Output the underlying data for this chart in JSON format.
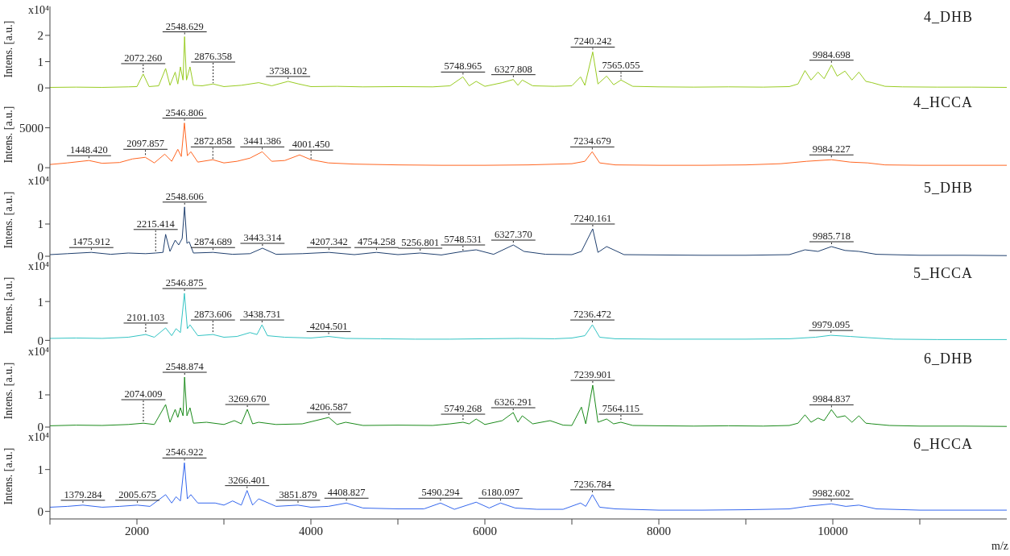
{
  "chart_data": [
    {
      "type": "line",
      "title": "4_DHB",
      "ylabel": "Intens. [a.u.]",
      "xlim": [
        1000,
        12000
      ],
      "ylim": [
        -0.15,
        3.1
      ],
      "yticks": [
        0,
        1,
        2
      ],
      "tick_labels": "y",
      "series": [
        {
          "color": "#99cc22",
          "x": [
            1000,
            1300,
            1600,
            1900,
            2000,
            2072,
            2140,
            2250,
            2330,
            2380,
            2440,
            2470,
            2500,
            2530,
            2548,
            2570,
            2610,
            2650,
            2750,
            2876,
            3000,
            3200,
            3400,
            3550,
            3738,
            3860,
            4000,
            4300,
            4600,
            5000,
            5400,
            5600,
            5748,
            5820,
            5900,
            6000,
            6200,
            6327,
            6380,
            6430,
            6550,
            6800,
            7000,
            7100,
            7150,
            7240,
            7300,
            7400,
            7480,
            7565,
            7700,
            8000,
            8400,
            8800,
            9200,
            9500,
            9600,
            9680,
            9750,
            9830,
            9900,
            9984,
            10050,
            10140,
            10220,
            10300,
            10380,
            10450,
            10600,
            10800,
            11200,
            11600,
            12000
          ],
          "values": [
            0.02,
            0.03,
            0.02,
            0.04,
            0.05,
            0.53,
            0.05,
            0.08,
            0.74,
            0.1,
            0.6,
            0.15,
            0.8,
            0.3,
            1.95,
            0.3,
            0.8,
            0.1,
            0.08,
            0.15,
            0.05,
            0.1,
            0.2,
            0.08,
            0.25,
            0.15,
            0.05,
            0.06,
            0.04,
            0.05,
            0.04,
            0.08,
            0.42,
            0.08,
            0.25,
            0.06,
            0.2,
            0.32,
            0.1,
            0.3,
            0.08,
            0.06,
            0.08,
            0.42,
            0.1,
            1.37,
            0.15,
            0.45,
            0.12,
            0.3,
            0.06,
            0.04,
            0.03,
            0.04,
            0.03,
            0.05,
            0.15,
            0.66,
            0.3,
            0.6,
            0.35,
            0.87,
            0.45,
            0.64,
            0.3,
            0.6,
            0.25,
            0.2,
            0.06,
            0.04,
            0.03,
            0.03,
            0.02
          ]
        }
      ],
      "annotations": [
        "x10⁴",
        {
          "text": "2072.260",
          "x": 2072.26,
          "y": 0.53
        },
        {
          "text": "2548.629",
          "x": 2548.629,
          "y": 1.95
        },
        {
          "text": "2876.358",
          "x": 2876.358,
          "y": 0.15
        },
        {
          "text": "3738.102",
          "x": 3738.102,
          "y": 0.25
        },
        {
          "text": "5748.965",
          "x": 5748.965,
          "y": 0.42
        },
        {
          "text": "6327.808",
          "x": 6327.808,
          "y": 0.32
        },
        {
          "text": "7240.242",
          "x": 7240.242,
          "y": 1.37
        },
        {
          "text": "7565.055",
          "x": 7565.055,
          "y": 0.3
        },
        {
          "text": "9984.698",
          "x": 9984.698,
          "y": 0.87
        }
      ]
    },
    {
      "type": "line",
      "title": "4_HCCA",
      "ylabel": "Intens. [a.u.]",
      "xlim": [
        1000,
        12000
      ],
      "ylim": [
        -1200,
        9500
      ],
      "yticks": [
        0,
        5000
      ],
      "tick_labels": "y",
      "series": [
        {
          "color": "#ff6622",
          "x": [
            1000,
            1200,
            1448,
            1600,
            1800,
            1950,
            2097,
            2200,
            2320,
            2400,
            2470,
            2510,
            2546,
            2580,
            2620,
            2700,
            2872,
            3000,
            3150,
            3300,
            3441,
            3550,
            3700,
            3870,
            4001,
            4200,
            4500,
            5000,
            5500,
            6000,
            6500,
            7000,
            7150,
            7234,
            7320,
            7500,
            8000,
            8500,
            9000,
            9400,
            9700,
            9984,
            10200,
            10400,
            10600,
            11000,
            11500,
            12000
          ],
          "values": [
            400,
            600,
            900,
            550,
            650,
            1100,
            1300,
            600,
            1700,
            800,
            2300,
            1400,
            5600,
            1500,
            2000,
            700,
            1000,
            600,
            800,
            1200,
            2000,
            800,
            900,
            1600,
            1000,
            600,
            450,
            350,
            300,
            300,
            350,
            500,
            800,
            2000,
            600,
            350,
            300,
            300,
            350,
            500,
            800,
            1000,
            700,
            600,
            350,
            300,
            300,
            300
          ]
        }
      ],
      "annotations": [
        {
          "text": "1448.420",
          "x": 1448.42,
          "y": 900
        },
        {
          "text": "2097.857",
          "x": 2097.857,
          "y": 1300
        },
        {
          "text": "2546.806",
          "x": 2546.806,
          "y": 5600
        },
        {
          "text": "2872.858",
          "x": 2872.858,
          "y": 1000
        },
        {
          "text": "3441.386",
          "x": 3441.386,
          "y": 2000
        },
        {
          "text": "4001.450",
          "x": 4001.45,
          "y": 1000
        },
        {
          "text": "7234.679",
          "x": 7234.679,
          "y": 2000
        },
        {
          "text": "9984.227",
          "x": 9984.227,
          "y": 1000
        }
      ]
    },
    {
      "type": "line",
      "title": "5_DHB",
      "ylabel": "Intens. [a.u.]",
      "xlim": [
        1000,
        12000
      ],
      "ylim": [
        -0.2,
        2.45
      ],
      "yticks": [
        0,
        1
      ],
      "tick_labels": "y",
      "series": [
        {
          "color": "#1f3f6e",
          "x": [
            1000,
            1200,
            1475,
            1700,
            1900,
            2100,
            2215,
            2300,
            2330,
            2380,
            2440,
            2480,
            2520,
            2548,
            2575,
            2600,
            2650,
            2874,
            3100,
            3300,
            3443,
            3600,
            3900,
            4207,
            4500,
            4754,
            5000,
            5256,
            5500,
            5748,
            5900,
            6100,
            6327,
            6450,
            6700,
            7000,
            7110,
            7240,
            7300,
            7400,
            7600,
            8000,
            8500,
            9000,
            9500,
            9680,
            9830,
            9984,
            10140,
            10300,
            10500,
            11000,
            11500,
            12000
          ],
          "values": [
            0.05,
            0.08,
            0.12,
            0.06,
            0.1,
            0.08,
            0.1,
            0.12,
            0.68,
            0.15,
            0.5,
            0.35,
            0.55,
            1.53,
            0.4,
            0.45,
            0.1,
            0.12,
            0.06,
            0.08,
            0.25,
            0.06,
            0.08,
            0.12,
            0.05,
            0.12,
            0.05,
            0.1,
            0.04,
            0.15,
            0.2,
            0.06,
            0.35,
            0.15,
            0.06,
            0.05,
            0.15,
            0.85,
            0.12,
            0.3,
            0.05,
            0.04,
            0.03,
            0.03,
            0.05,
            0.2,
            0.15,
            0.3,
            0.18,
            0.15,
            0.06,
            0.03,
            0.03,
            0.02
          ]
        }
      ],
      "annotations": [
        "x10⁴",
        {
          "text": "1475.912",
          "x": 1475.912,
          "y": 0.12
        },
        {
          "text": "2215.414",
          "x": 2215.414,
          "y": 0.1
        },
        {
          "text": "2548.606",
          "x": 2548.606,
          "y": 1.53
        },
        {
          "text": "2874.689",
          "x": 2874.689,
          "y": 0.12
        },
        {
          "text": "3443.314",
          "x": 3443.314,
          "y": 0.25
        },
        {
          "text": "4207.342",
          "x": 4207.342,
          "y": 0.12
        },
        {
          "text": "4754.258",
          "x": 4754.258,
          "y": 0.12
        },
        {
          "text": "5256.801",
          "x": 5256.801,
          "y": 0.1
        },
        {
          "text": "5748.531",
          "x": 5748.531,
          "y": 0.15
        },
        {
          "text": "6327.370",
          "x": 6327.37,
          "y": 0.35
        },
        {
          "text": "7240.161",
          "x": 7240.161,
          "y": 0.85
        },
        {
          "text": "9985.718",
          "x": 9985.718,
          "y": 0.3
        }
      ]
    },
    {
      "type": "line",
      "title": "5_HCCA",
      "ylabel": "Intens. [a.u.]",
      "xlim": [
        1000,
        12000
      ],
      "ylim": [
        -0.2,
        2.0
      ],
      "yticks": [
        0,
        1
      ],
      "tick_labels": "y",
      "series": [
        {
          "color": "#33c4c4",
          "x": [
            1000,
            1300,
            1600,
            1900,
            2101,
            2200,
            2330,
            2400,
            2450,
            2500,
            2546,
            2580,
            2610,
            2700,
            2873,
            3000,
            3150,
            3300,
            3380,
            3438,
            3500,
            3700,
            4000,
            4204,
            4400,
            4800,
            5200,
            5600,
            6000,
            6400,
            6800,
            7000,
            7150,
            7236,
            7320,
            7500,
            8000,
            8500,
            9000,
            9500,
            9800,
            9979,
            10200,
            10400,
            10700,
            11200,
            12000
          ],
          "values": [
            0.05,
            0.06,
            0.05,
            0.08,
            0.15,
            0.08,
            0.32,
            0.12,
            0.3,
            0.2,
            1.21,
            0.3,
            0.4,
            0.12,
            0.15,
            0.08,
            0.1,
            0.2,
            0.15,
            0.4,
            0.12,
            0.08,
            0.06,
            0.1,
            0.05,
            0.04,
            0.03,
            0.03,
            0.04,
            0.05,
            0.04,
            0.06,
            0.12,
            0.4,
            0.08,
            0.04,
            0.03,
            0.03,
            0.03,
            0.04,
            0.08,
            0.13,
            0.1,
            0.07,
            0.03,
            0.02,
            0.02
          ]
        }
      ],
      "annotations": [
        "x10⁴",
        {
          "text": "2101.103",
          "x": 2101.103,
          "y": 0.15
        },
        {
          "text": "2546.875",
          "x": 2546.875,
          "y": 1.21
        },
        {
          "text": "2873.606",
          "x": 2873.606,
          "y": 0.15
        },
        {
          "text": "3438.731",
          "x": 3438.731,
          "y": 0.4
        },
        {
          "text": "4204.501",
          "x": 4204.501,
          "y": 0.1
        },
        {
          "text": "7236.472",
          "x": 7236.472,
          "y": 0.4
        },
        {
          "text": "9979.095",
          "x": 9979.095,
          "y": 0.13
        }
      ]
    },
    {
      "type": "line",
      "title": "6_DHB",
      "ylabel": "Intens. [a.u.]",
      "xlim": [
        1000,
        12000
      ],
      "ylim": [
        -0.2,
        2.45
      ],
      "yticks": [
        0,
        1
      ],
      "tick_labels": "y",
      "series": [
        {
          "color": "#1a8a1a",
          "x": [
            1000,
            1300,
            1600,
            1900,
            2074,
            2200,
            2330,
            2380,
            2440,
            2470,
            2500,
            2530,
            2548,
            2575,
            2610,
            2650,
            2800,
            3000,
            3120,
            3200,
            3269,
            3330,
            3400,
            3600,
            3900,
            4206,
            4300,
            4400,
            4600,
            5000,
            5400,
            5600,
            5749,
            5820,
            5900,
            6000,
            6200,
            6326,
            6380,
            6430,
            6550,
            6750,
            6900,
            7000,
            7110,
            7160,
            7240,
            7300,
            7400,
            7480,
            7564,
            7700,
            8000,
            8400,
            8800,
            9200,
            9500,
            9600,
            9680,
            9750,
            9830,
            9900,
            9984,
            10050,
            10140,
            10220,
            10300,
            10380,
            10450,
            10650,
            11000,
            11500,
            12000
          ],
          "values": [
            0.04,
            0.06,
            0.05,
            0.08,
            0.12,
            0.08,
            0.7,
            0.15,
            0.55,
            0.3,
            0.6,
            0.35,
            1.55,
            0.35,
            0.6,
            0.12,
            0.15,
            0.08,
            0.2,
            0.1,
            0.55,
            0.1,
            0.15,
            0.08,
            0.1,
            0.3,
            0.08,
            0.15,
            0.05,
            0.06,
            0.05,
            0.1,
            0.15,
            0.1,
            0.25,
            0.08,
            0.2,
            0.45,
            0.15,
            0.35,
            0.1,
            0.2,
            0.06,
            0.05,
            0.62,
            0.1,
            1.3,
            0.15,
            0.25,
            0.1,
            0.15,
            0.05,
            0.04,
            0.03,
            0.04,
            0.03,
            0.05,
            0.12,
            0.38,
            0.15,
            0.28,
            0.2,
            0.54,
            0.3,
            0.35,
            0.15,
            0.35,
            0.12,
            0.1,
            0.05,
            0.03,
            0.03,
            0.02
          ]
        }
      ],
      "annotations": [
        "x10⁴",
        {
          "text": "2074.009",
          "x": 2074.009,
          "y": 0.12
        },
        {
          "text": "2548.874",
          "x": 2548.874,
          "y": 1.55
        },
        {
          "text": "3269.670",
          "x": 3269.67,
          "y": 0.55
        },
        {
          "text": "4206.587",
          "x": 4206.587,
          "y": 0.3
        },
        {
          "text": "5749.268",
          "x": 5749.268,
          "y": 0.15
        },
        {
          "text": "6326.291",
          "x": 6326.291,
          "y": 0.45
        },
        {
          "text": "7239.901",
          "x": 7239.901,
          "y": 1.3
        },
        {
          "text": "7564.115",
          "x": 7564.115,
          "y": 0.15
        },
        {
          "text": "9984.837",
          "x": 9984.837,
          "y": 0.54
        }
      ]
    },
    {
      "type": "line",
      "title": "6_HCCA",
      "xlabel": "m/z",
      "ylabel": "Intens. [a.u.]",
      "xlim": [
        1000,
        12000
      ],
      "ylim": [
        -0.18,
        1.86
      ],
      "yticks": [
        0,
        1
      ],
      "xticks": [
        {
          "value": 1000,
          "label": null
        },
        2000,
        {
          "value": 3000,
          "label": null
        },
        4000,
        {
          "value": 5000,
          "label": null
        },
        6000,
        {
          "value": 7000,
          "label": null
        },
        8000,
        {
          "value": 9000,
          "label": null
        },
        10000,
        {
          "value": 11000,
          "label": null
        }
      ],
      "series": [
        {
          "color": "#3366ee",
          "x": [
            1000,
            1200,
            1379,
            1600,
            1800,
            2005,
            2150,
            2330,
            2400,
            2450,
            2500,
            2546,
            2580,
            2620,
            2700,
            2900,
            3000,
            3100,
            3200,
            3266,
            3330,
            3400,
            3600,
            3851,
            4000,
            4200,
            4408,
            4600,
            5000,
            5300,
            5490,
            5650,
            5900,
            6050,
            6180,
            6350,
            6600,
            6900,
            7100,
            7160,
            7236,
            7320,
            7500,
            8000,
            8500,
            9000,
            9500,
            9700,
            9984,
            10150,
            10300,
            10500,
            11000,
            12000
          ],
          "values": [
            0.1,
            0.12,
            0.15,
            0.1,
            0.12,
            0.15,
            0.12,
            0.4,
            0.2,
            0.35,
            0.25,
            1.16,
            0.3,
            0.4,
            0.2,
            0.2,
            0.15,
            0.25,
            0.15,
            0.5,
            0.15,
            0.3,
            0.12,
            0.15,
            0.1,
            0.12,
            0.2,
            0.08,
            0.06,
            0.06,
            0.2,
            0.05,
            0.22,
            0.08,
            0.2,
            0.08,
            0.05,
            0.05,
            0.2,
            0.12,
            0.4,
            0.1,
            0.06,
            0.03,
            0.03,
            0.04,
            0.06,
            0.12,
            0.18,
            0.12,
            0.15,
            0.06,
            0.03,
            0.03
          ]
        }
      ],
      "annotations": [
        "x10⁴",
        {
          "text": "1379.284",
          "x": 1379.284,
          "y": 0.15
        },
        {
          "text": "2005.675",
          "x": 2005.675,
          "y": 0.15
        },
        {
          "text": "2546.922",
          "x": 2546.922,
          "y": 1.16
        },
        {
          "text": "3266.401",
          "x": 3266.401,
          "y": 0.5
        },
        {
          "text": "3851.879",
          "x": 3851.879,
          "y": 0.15
        },
        {
          "text": "4408.827",
          "x": 4408.827,
          "y": 0.2
        },
        {
          "text": "5490.294",
          "x": 5490.294,
          "y": 0.2
        },
        {
          "text": "6180.097",
          "x": 6180.097,
          "y": 0.2
        },
        {
          "text": "7236.784",
          "x": 7236.784,
          "y": 0.4
        },
        {
          "text": "9982.602",
          "x": 9982.602,
          "y": 0.18
        }
      ]
    }
  ]
}
